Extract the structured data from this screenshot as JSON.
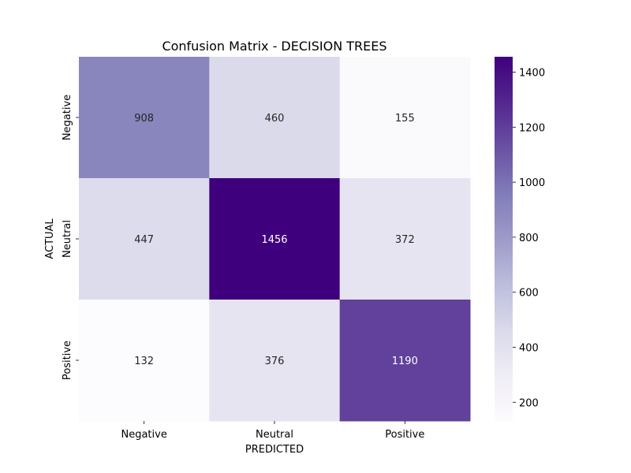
{
  "chart_data": {
    "type": "heatmap",
    "title": "Confusion Matrix - DECISION TREES",
    "xlabel": "PREDICTED",
    "ylabel": "ACTUAL",
    "x_categories": [
      "Negative",
      "Neutral",
      "Positive"
    ],
    "y_categories": [
      "Negative",
      "Neutral",
      "Positive"
    ],
    "values": [
      [
        908,
        460,
        155
      ],
      [
        447,
        1456,
        372
      ],
      [
        132,
        376,
        1190
      ]
    ],
    "colormap": "Purples",
    "colorbar": {
      "range": [
        132,
        1456
      ],
      "ticks": [
        200,
        400,
        600,
        800,
        1000,
        1200,
        1400
      ]
    },
    "colors": {
      "low": "#fcfbfd",
      "high": "#3f007d"
    }
  }
}
